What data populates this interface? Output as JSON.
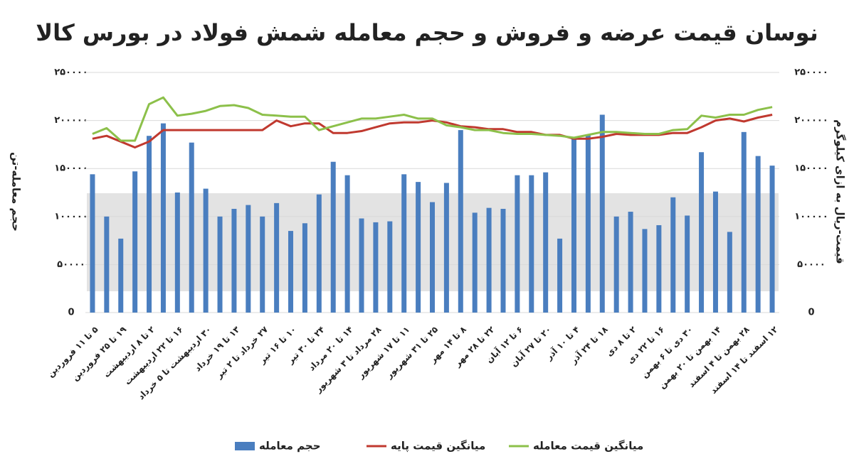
{
  "chart_data": {
    "type": "bar_line",
    "title": "نوسان قیمت عرضه و فروش و حجم معامله شمش فولاد در بورس کالا",
    "ylabel": "حجم معامله-تن",
    "y2label": "قیمت-ریال به ازای کیلوگرم",
    "categories": [
      "۵ تا ۱۱ فروردین",
      null,
      "۱۹ تا ۲۵ فروردین",
      null,
      "۲ تا ۸ اردیبهشت",
      null,
      "۱۶ تا ۲۲ اردیبهشت",
      null,
      "۳۰ اردیبهشت تا ۵ خرداد",
      null,
      "۱۳ تا ۱۹ خرداد",
      null,
      "۲۷ خرداد تا ۲ تیر",
      null,
      "۱۰ تا ۱۶ تیر",
      null,
      "۲۴ تا ۳۰ تیر",
      null,
      "۱۴ تا ۲۰ مرداد",
      null,
      "۲۸ مرداد تا ۳ شهریور",
      null,
      "۱۱ تا ۱۷ شهریور",
      null,
      "۲۵ تا ۳۱ شهریور",
      null,
      "۸ تا ۱۴ مهر",
      null,
      "۲۲ تا ۲۸ مهر",
      null,
      "۶ تا ۱۲ آبان",
      null,
      "۲۰ تا ۲۷ آبان",
      null,
      "۴ تا ۱۰ آذر",
      null,
      "۱۸ تا ۲۴ آذر",
      null,
      "۲ تا ۸ دی",
      null,
      "۱۶ تا ۲۲ دی",
      null,
      "۳۰ دی تا ۶ بهمن",
      null,
      "۱۴ بهمن تا ۲۰ بهمن",
      null,
      "۲۸ بهمن تا ۴ اسفند",
      null,
      "۱۲ اسفند تا ۱۴ اسفند"
    ],
    "series": [
      {
        "name": "حجم معامله",
        "color": "#4a7ebf",
        "kind": "bar",
        "values": [
          144000,
          100000,
          77000,
          147000,
          184000,
          197000,
          125000,
          177000,
          129000,
          100000,
          108000,
          112000,
          100000,
          114000,
          85000,
          93000,
          123000,
          157000,
          143000,
          98000,
          94000,
          95000,
          144000,
          136000,
          115000,
          135000,
          190000,
          104000,
          109000,
          108000,
          143000,
          143000,
          146000,
          77000,
          183000,
          185000,
          206000,
          100000,
          105000,
          87000,
          91000,
          120000,
          101000,
          167000,
          126000,
          84000,
          188000,
          163000,
          153000
        ]
      },
      {
        "name": "میانگین قیمت پایه",
        "color": "#c0392f",
        "kind": "line",
        "axis": "y2",
        "values": [
          181000,
          184000,
          178000,
          172000,
          178000,
          190000,
          190000,
          190000,
          190000,
          190000,
          190000,
          190000,
          190000,
          200000,
          194000,
          197000,
          197000,
          187000,
          187000,
          189000,
          193000,
          197000,
          198000,
          198000,
          200000,
          198000,
          194000,
          193000,
          191000,
          191000,
          188000,
          188000,
          185000,
          185000,
          181000,
          181000,
          183000,
          186000,
          185000,
          185000,
          185000,
          187000,
          187000,
          193000,
          200000,
          202000,
          199000,
          203000,
          206000
        ]
      },
      {
        "name": "میانگین قیمت معامله",
        "color": "#8cc04a",
        "kind": "line",
        "axis": "y2",
        "values": [
          186000,
          192000,
          179000,
          179000,
          217000,
          224000,
          205000,
          207000,
          210000,
          215000,
          216000,
          213000,
          206000,
          205000,
          204000,
          204000,
          190000,
          194000,
          198000,
          202000,
          202000,
          204000,
          206000,
          202000,
          202000,
          195000,
          193000,
          190000,
          190000,
          187000,
          186000,
          186000,
          185000,
          184000,
          182000,
          185000,
          188000,
          188000,
          187000,
          186000,
          186000,
          190000,
          191000,
          205000,
          203000,
          206000,
          206000,
          211000,
          214000
        ]
      }
    ],
    "ylim": [
      0,
      250000
    ],
    "yticks": [
      0,
      {
        "value": 50000,
        "label": "۵۰۰۰۰"
      },
      {
        "value": 100000,
        "label": "۱۰۰۰۰۰"
      },
      {
        "value": 150000,
        "label": "۱۵۰۰۰۰"
      },
      {
        "value": 200000,
        "label": "۲۰۰۰۰۰"
      },
      {
        "value": 250000,
        "label": "۲۵۰۰۰۰"
      }
    ],
    "y2lim": [
      0,
      250000
    ],
    "y2ticks": [
      0,
      {
        "value": 50000,
        "label": "۵۰۰۰۰"
      },
      {
        "value": 100000,
        "label": "۱۰۰۰۰۰"
      },
      {
        "value": 150000,
        "label": "۱۵۰۰۰۰"
      },
      {
        "value": 200000,
        "label": "۲۰۰۰۰۰"
      },
      {
        "value": 250000,
        "label": "۲۵۰۰۰۰"
      }
    ],
    "grid": true,
    "legend": "bottom"
  }
}
